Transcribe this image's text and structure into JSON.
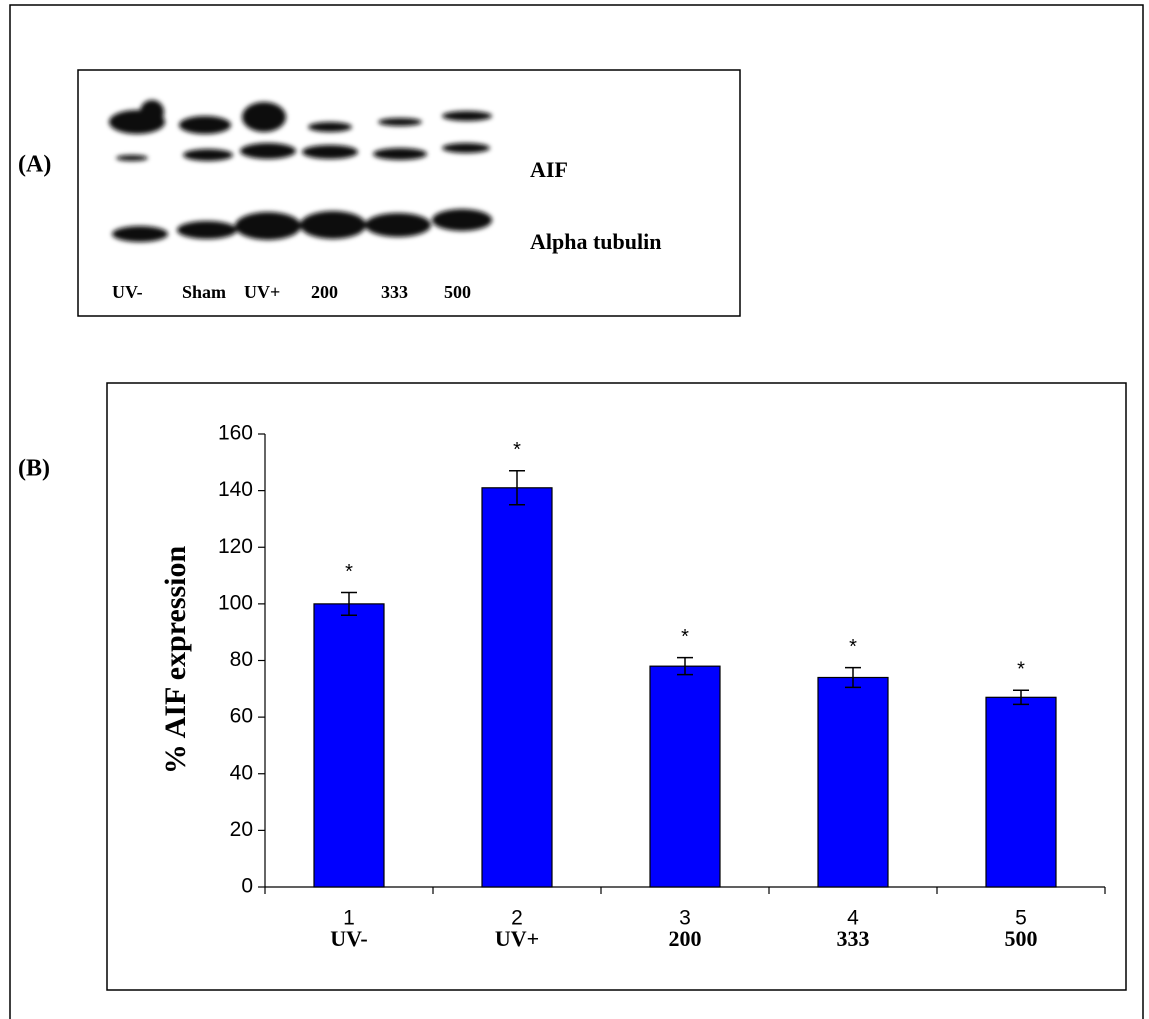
{
  "panel_a": {
    "panel_label": "(A)",
    "band_labels": [
      "AIF",
      "Alpha tubulin"
    ],
    "lane_labels": [
      "UV-",
      "Sham",
      "UV+",
      "200",
      "333",
      "500"
    ]
  },
  "chart_data": {
    "type": "bar",
    "panel_label": "(B)",
    "y_label": "% AIF expression",
    "categories": [
      "1",
      "2",
      "3",
      "4",
      "5"
    ],
    "sublabels": [
      "UV-",
      "UV+",
      "200",
      "333",
      "500"
    ],
    "values": [
      100,
      141,
      78,
      74,
      67
    ],
    "errors": [
      4,
      6,
      3,
      3.5,
      2.5
    ],
    "annotations": [
      "*",
      "*",
      "*",
      "*",
      "*"
    ],
    "color": "#0000ff",
    "ylim": [
      0,
      160
    ],
    "yticks": [
      0,
      20,
      40,
      60,
      80,
      100,
      120,
      140,
      160
    ],
    "grid": false
  }
}
